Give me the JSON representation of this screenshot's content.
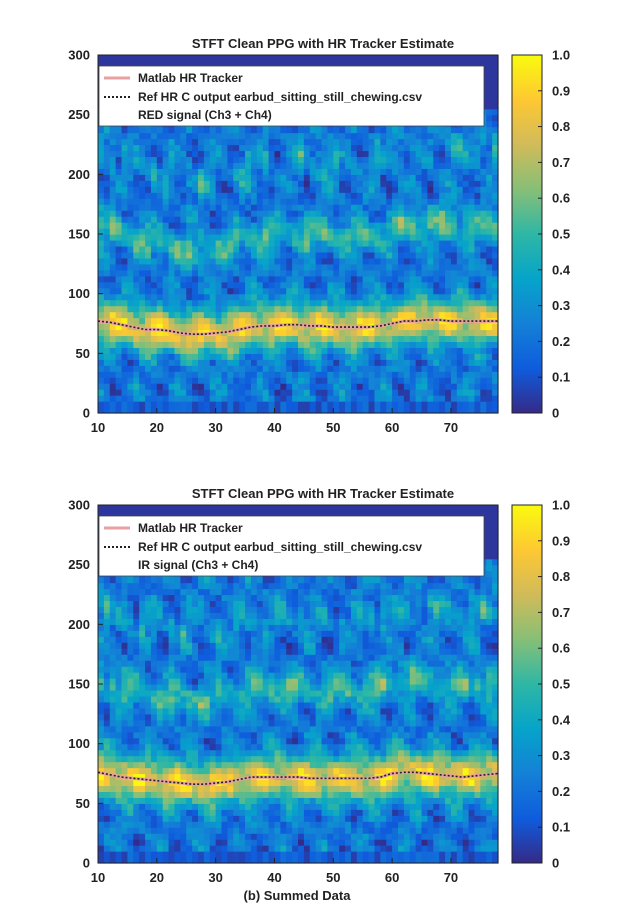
{
  "caption": "(b) Summed Data",
  "colorbar_ticks": [
    "0",
    "0.1",
    "0.2",
    "0.3",
    "0.4",
    "0.5",
    "0.6",
    "0.7",
    "0.8",
    "0.9",
    "1.0"
  ],
  "colormap": [
    "#352a87",
    "#0f5cdd",
    "#1481d6",
    "#06a4ca",
    "#2eb7a4",
    "#87bf77",
    "#d1bb59",
    "#fec832",
    "#f9fb0e"
  ],
  "legend_colors": {
    "matlab": "#e8a0a0",
    "ref": "#222222"
  },
  "chart_data": [
    {
      "type": "heatmap",
      "title": "STFT Clean PPG with HR Tracker Estimate",
      "xlabel": "",
      "ylabel": "",
      "xlim": [
        10,
        78
      ],
      "ylim": [
        0,
        300
      ],
      "x_ticks": [
        10,
        20,
        30,
        40,
        50,
        60,
        70
      ],
      "y_ticks": [
        0,
        50,
        100,
        150,
        200,
        250,
        300
      ],
      "clim": [
        0,
        1.0
      ],
      "colorbar": "parula",
      "legend_position": "top",
      "legend": [
        "Matlab HR Tracker",
        "Ref HR C output earbud_sitting_still_chewing.csv",
        "RED signal (Ch3 + Ch4)"
      ],
      "series": [
        {
          "name": "Matlab HR Tracker",
          "x": [
            10,
            12,
            14,
            16,
            18,
            20,
            22,
            24,
            26,
            28,
            30,
            32,
            34,
            36,
            38,
            40,
            42,
            44,
            46,
            48,
            50,
            52,
            54,
            56,
            58,
            60,
            62,
            64,
            66,
            68,
            70,
            72,
            74,
            76,
            78
          ],
          "y": [
            77,
            76,
            74,
            72,
            70,
            70,
            69,
            67,
            66,
            66,
            67,
            68,
            70,
            72,
            73,
            73,
            74,
            74,
            73,
            73,
            72,
            72,
            72,
            72,
            73,
            75,
            77,
            77,
            78,
            78,
            77,
            77,
            77,
            77,
            77
          ]
        },
        {
          "name": "Ref HR C output earbud_sitting_still_chewing.csv",
          "x": [
            10,
            12,
            14,
            16,
            18,
            20,
            22,
            24,
            26,
            28,
            30,
            32,
            34,
            36,
            38,
            40,
            42,
            44,
            46,
            48,
            50,
            52,
            54,
            56,
            58,
            60,
            62,
            64,
            66,
            68,
            70,
            72,
            74,
            76,
            78
          ],
          "y": [
            77,
            76,
            74,
            72,
            70,
            70,
            69,
            67,
            66,
            66,
            67,
            68,
            70,
            72,
            73,
            73,
            74,
            74,
            73,
            73,
            72,
            72,
            72,
            72,
            73,
            75,
            77,
            77,
            78,
            78,
            77,
            77,
            77,
            77,
            77
          ]
        }
      ]
    },
    {
      "type": "heatmap",
      "title": "STFT Clean PPG with HR Tracker Estimate",
      "xlabel": "",
      "ylabel": "",
      "xlim": [
        10,
        78
      ],
      "ylim": [
        0,
        300
      ],
      "x_ticks": [
        10,
        20,
        30,
        40,
        50,
        60,
        70
      ],
      "y_ticks": [
        0,
        50,
        100,
        150,
        200,
        250,
        300
      ],
      "clim": [
        0,
        1.0
      ],
      "colorbar": "parula",
      "legend_position": "top",
      "legend": [
        "Matlab HR Tracker",
        "Ref HR C output earbud_sitting_still_chewing.csv",
        "IR signal (Ch3 + Ch4)"
      ],
      "series": [
        {
          "name": "Matlab HR Tracker",
          "x": [
            10,
            12,
            14,
            16,
            18,
            20,
            22,
            24,
            26,
            28,
            30,
            32,
            34,
            36,
            38,
            40,
            42,
            44,
            46,
            48,
            50,
            52,
            54,
            56,
            58,
            60,
            62,
            64,
            66,
            68,
            70,
            72,
            74,
            76,
            78
          ],
          "y": [
            76,
            74,
            72,
            71,
            70,
            69,
            68,
            67,
            66,
            66,
            67,
            68,
            70,
            72,
            72,
            72,
            72,
            72,
            71,
            71,
            71,
            71,
            71,
            71,
            72,
            75,
            76,
            76,
            75,
            74,
            73,
            72,
            73,
            74,
            75
          ]
        },
        {
          "name": "Ref HR C output earbud_sitting_still_chewing.csv",
          "x": [
            10,
            12,
            14,
            16,
            18,
            20,
            22,
            24,
            26,
            28,
            30,
            32,
            34,
            36,
            38,
            40,
            42,
            44,
            46,
            48,
            50,
            52,
            54,
            56,
            58,
            60,
            62,
            64,
            66,
            68,
            70,
            72,
            74,
            76,
            78
          ],
          "y": [
            76,
            74,
            72,
            71,
            70,
            69,
            68,
            67,
            66,
            66,
            67,
            68,
            70,
            72,
            72,
            72,
            72,
            72,
            71,
            71,
            71,
            71,
            71,
            71,
            72,
            75,
            76,
            76,
            75,
            74,
            73,
            72,
            73,
            74,
            75
          ]
        }
      ]
    }
  ]
}
